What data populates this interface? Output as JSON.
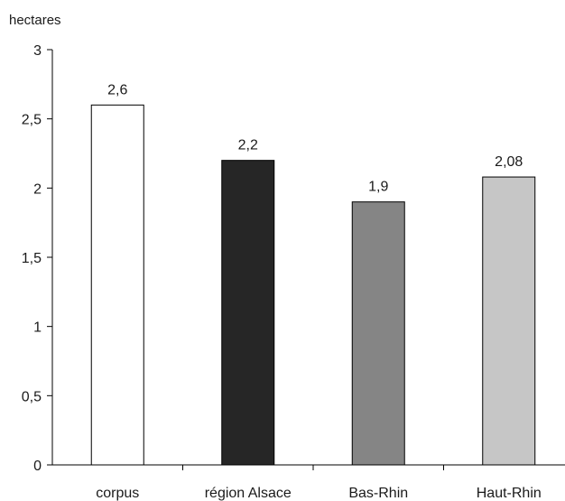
{
  "chart_data": {
    "type": "bar",
    "title": "",
    "ylabel": "hectares",
    "xlabel": "",
    "categories": [
      "corpus",
      "région Alsace",
      "Bas-Rhin",
      "Haut-Rhin"
    ],
    "values": [
      2.6,
      2.2,
      1.9,
      2.08
    ],
    "value_labels": [
      "2,6",
      "2,2",
      "1,9",
      "2,08"
    ],
    "colors": [
      "#ffffff",
      "#262626",
      "#858585",
      "#c6c6c6"
    ],
    "ylim": [
      0,
      3
    ],
    "yticks": [
      0,
      0.5,
      1,
      1.5,
      2,
      2.5,
      3
    ],
    "ytick_labels": [
      "0",
      "0,5",
      "1",
      "1,5",
      "2",
      "2,5",
      "3"
    ],
    "grid": false,
    "legend": "none"
  }
}
